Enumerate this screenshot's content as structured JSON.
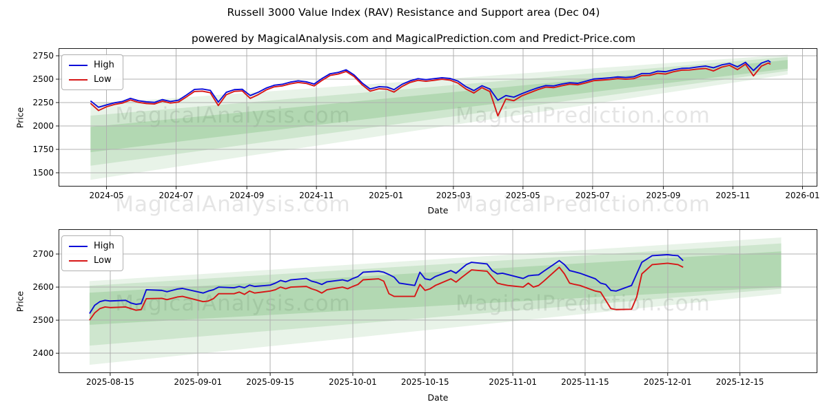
{
  "title": "Russell 3000 Value Index (RAV) Resistance and Support area (Dec 04)",
  "subtitle": "powered by MagicalAnalysis.com and MagicalPrediction.com and Predict-Price.com",
  "watermark": {
    "left_text": "MagicalAnalysis.com",
    "right_text": "MagicalPrediction.com"
  },
  "colors": {
    "high": "#0b0bd8",
    "low": "#d71616",
    "band": "#4da34d",
    "grid": "#b0b0b0",
    "spine": "#1a1a1a"
  },
  "chart_data": [
    {
      "type": "line",
      "ylabel": "Price",
      "xlabel": "Date",
      "ylim": [
        1353,
        2831
      ],
      "xlim": [
        "2024-03-20",
        "2026-01-14"
      ],
      "yticks": [
        2750,
        2500,
        2250,
        2000,
        1750,
        1500
      ],
      "xticks": [
        {
          "date": "2024-05-01",
          "label": "2024-05"
        },
        {
          "date": "2024-07-01",
          "label": "2024-07"
        },
        {
          "date": "2024-09-01",
          "label": "2024-09"
        },
        {
          "date": "2024-11-01",
          "label": "2024-11"
        },
        {
          "date": "2025-01-01",
          "label": "2025-01"
        },
        {
          "date": "2025-03-01",
          "label": "2025-03"
        },
        {
          "date": "2025-05-01",
          "label": "2025-05"
        },
        {
          "date": "2025-07-01",
          "label": "2025-07"
        },
        {
          "date": "2025-09-01",
          "label": "2025-09"
        },
        {
          "date": "2025-11-01",
          "label": "2025-11"
        },
        {
          "date": "2026-01-01",
          "label": "2026-01"
        }
      ],
      "bands": [
        {
          "x0": "2024-04-17",
          "x1": "2025-12-19",
          "top0": 2235,
          "top1": 2762,
          "bot0": 1425,
          "bot1": 2550,
          "alpha": 0.13
        },
        {
          "x0": "2024-04-17",
          "x1": "2025-12-19",
          "top0": 2110,
          "top1": 2738,
          "bot0": 1575,
          "bot1": 2588,
          "alpha": 0.16
        },
        {
          "x0": "2024-04-17",
          "x1": "2025-12-19",
          "top0": 1990,
          "top1": 2705,
          "bot0": 1720,
          "bot1": 2612,
          "alpha": 0.21
        }
      ],
      "series": [
        {
          "name": "High",
          "color_key": "high",
          "dates": [
            "2024-04-17",
            "2024-04-24",
            "2024-05-01",
            "2024-05-08",
            "2024-05-15",
            "2024-05-22",
            "2024-05-29",
            "2024-06-05",
            "2024-06-12",
            "2024-06-19",
            "2024-06-26",
            "2024-07-03",
            "2024-07-10",
            "2024-07-17",
            "2024-07-24",
            "2024-07-31",
            "2024-08-07",
            "2024-08-14",
            "2024-08-21",
            "2024-08-28",
            "2024-09-04",
            "2024-09-11",
            "2024-09-18",
            "2024-09-25",
            "2024-10-02",
            "2024-10-09",
            "2024-10-16",
            "2024-10-23",
            "2024-10-30",
            "2024-11-06",
            "2024-11-13",
            "2024-11-20",
            "2024-11-27",
            "2024-12-04",
            "2024-12-11",
            "2024-12-18",
            "2024-12-26",
            "2025-01-02",
            "2025-01-08",
            "2025-01-15",
            "2025-01-22",
            "2025-01-29",
            "2025-02-05",
            "2025-02-12",
            "2025-02-19",
            "2025-02-26",
            "2025-03-05",
            "2025-03-12",
            "2025-03-19",
            "2025-03-26",
            "2025-04-02",
            "2025-04-09",
            "2025-04-16",
            "2025-04-23",
            "2025-04-30",
            "2025-05-07",
            "2025-05-14",
            "2025-05-21",
            "2025-05-28",
            "2025-06-04",
            "2025-06-11",
            "2025-06-18",
            "2025-06-25",
            "2025-07-02",
            "2025-07-09",
            "2025-07-16",
            "2025-07-23",
            "2025-07-30",
            "2025-08-06",
            "2025-08-13",
            "2025-08-20",
            "2025-08-27",
            "2025-09-03",
            "2025-09-10",
            "2025-09-17",
            "2025-09-24",
            "2025-10-01",
            "2025-10-08",
            "2025-10-15",
            "2025-10-22",
            "2025-10-29",
            "2025-11-05",
            "2025-11-12",
            "2025-11-19",
            "2025-11-26",
            "2025-12-02",
            "2025-12-04"
          ],
          "values": [
            2268,
            2200,
            2225,
            2248,
            2262,
            2295,
            2270,
            2258,
            2252,
            2282,
            2262,
            2275,
            2330,
            2390,
            2395,
            2380,
            2255,
            2360,
            2388,
            2392,
            2325,
            2360,
            2405,
            2435,
            2445,
            2468,
            2482,
            2472,
            2448,
            2508,
            2558,
            2572,
            2600,
            2545,
            2460,
            2395,
            2420,
            2415,
            2388,
            2445,
            2482,
            2505,
            2495,
            2505,
            2515,
            2508,
            2480,
            2420,
            2378,
            2430,
            2395,
            2275,
            2325,
            2308,
            2345,
            2378,
            2408,
            2432,
            2428,
            2448,
            2462,
            2456,
            2478,
            2502,
            2508,
            2514,
            2524,
            2518,
            2525,
            2560,
            2560,
            2585,
            2580,
            2600,
            2615,
            2618,
            2630,
            2640,
            2622,
            2652,
            2668,
            2632,
            2680,
            2592,
            2672,
            2698,
            2680
          ]
        },
        {
          "name": "Low",
          "color_key": "low",
          "dates": [
            "2024-04-17",
            "2024-04-24",
            "2024-05-01",
            "2024-05-08",
            "2024-05-15",
            "2024-05-22",
            "2024-05-29",
            "2024-06-05",
            "2024-06-12",
            "2024-06-19",
            "2024-06-26",
            "2024-07-03",
            "2024-07-10",
            "2024-07-17",
            "2024-07-24",
            "2024-07-31",
            "2024-08-07",
            "2024-08-14",
            "2024-08-21",
            "2024-08-28",
            "2024-09-04",
            "2024-09-11",
            "2024-09-18",
            "2024-09-25",
            "2024-10-02",
            "2024-10-09",
            "2024-10-16",
            "2024-10-23",
            "2024-10-30",
            "2024-11-06",
            "2024-11-13",
            "2024-11-20",
            "2024-11-27",
            "2024-12-04",
            "2024-12-11",
            "2024-12-18",
            "2024-12-26",
            "2025-01-02",
            "2025-01-08",
            "2025-01-15",
            "2025-01-22",
            "2025-01-29",
            "2025-02-05",
            "2025-02-12",
            "2025-02-19",
            "2025-02-26",
            "2025-03-05",
            "2025-03-12",
            "2025-03-19",
            "2025-03-26",
            "2025-04-02",
            "2025-04-09",
            "2025-04-16",
            "2025-04-23",
            "2025-04-30",
            "2025-05-07",
            "2025-05-14",
            "2025-05-21",
            "2025-05-28",
            "2025-06-04",
            "2025-06-11",
            "2025-06-18",
            "2025-06-25",
            "2025-07-02",
            "2025-07-09",
            "2025-07-16",
            "2025-07-23",
            "2025-07-30",
            "2025-08-06",
            "2025-08-13",
            "2025-08-20",
            "2025-08-27",
            "2025-09-03",
            "2025-09-10",
            "2025-09-17",
            "2025-09-24",
            "2025-10-01",
            "2025-10-08",
            "2025-10-15",
            "2025-10-22",
            "2025-10-29",
            "2025-11-05",
            "2025-11-12",
            "2025-11-19",
            "2025-11-26",
            "2025-12-02",
            "2025-12-04"
          ],
          "values": [
            2242,
            2165,
            2205,
            2230,
            2245,
            2278,
            2252,
            2240,
            2235,
            2265,
            2245,
            2255,
            2310,
            2368,
            2372,
            2355,
            2218,
            2335,
            2370,
            2375,
            2295,
            2335,
            2385,
            2418,
            2428,
            2450,
            2465,
            2455,
            2428,
            2488,
            2540,
            2555,
            2582,
            2528,
            2440,
            2372,
            2398,
            2392,
            2362,
            2422,
            2465,
            2488,
            2478,
            2488,
            2500,
            2490,
            2458,
            2395,
            2352,
            2410,
            2368,
            2108,
            2288,
            2270,
            2322,
            2355,
            2388,
            2415,
            2410,
            2430,
            2446,
            2440,
            2460,
            2484,
            2490,
            2496,
            2506,
            2500,
            2505,
            2538,
            2540,
            2562,
            2555,
            2580,
            2596,
            2598,
            2608,
            2615,
            2588,
            2628,
            2648,
            2602,
            2660,
            2535,
            2640,
            2672,
            2660
          ]
        }
      ]
    },
    {
      "type": "line",
      "ylabel": "Price",
      "xlabel": "Date",
      "ylim": [
        2340,
        2775
      ],
      "xlim": [
        "2025-08-05",
        "2025-12-30"
      ],
      "yticks": [
        2700,
        2600,
        2500,
        2400
      ],
      "xticks": [
        {
          "date": "2025-08-15",
          "label": "2025-08-15"
        },
        {
          "date": "2025-09-01",
          "label": "2025-09-01"
        },
        {
          "date": "2025-09-15",
          "label": "2025-09-15"
        },
        {
          "date": "2025-10-01",
          "label": "2025-10-01"
        },
        {
          "date": "2025-10-15",
          "label": "2025-10-15"
        },
        {
          "date": "2025-11-01",
          "label": "2025-11-01"
        },
        {
          "date": "2025-11-15",
          "label": "2025-11-15"
        },
        {
          "date": "2025-12-01",
          "label": "2025-12-01"
        },
        {
          "date": "2025-12-15",
          "label": "2025-12-15"
        }
      ],
      "bands": [
        {
          "x0": "2025-08-11",
          "x1": "2025-12-23",
          "top0": 2618,
          "top1": 2750,
          "bot0": 2365,
          "bot1": 2580,
          "alpha": 0.13
        },
        {
          "x0": "2025-08-11",
          "x1": "2025-12-23",
          "top0": 2604,
          "top1": 2732,
          "bot0": 2423,
          "bot1": 2595,
          "alpha": 0.16
        },
        {
          "x0": "2025-08-11",
          "x1": "2025-12-23",
          "top0": 2583,
          "top1": 2708,
          "bot0": 2486,
          "bot1": 2600,
          "alpha": 0.21
        }
      ],
      "series": [
        {
          "name": "High",
          "color_key": "high",
          "dates": [
            "2025-08-11",
            "2025-08-12",
            "2025-08-13",
            "2025-08-14",
            "2025-08-15",
            "2025-08-18",
            "2025-08-19",
            "2025-08-20",
            "2025-08-21",
            "2025-08-22",
            "2025-08-25",
            "2025-08-26",
            "2025-08-27",
            "2025-08-28",
            "2025-08-29",
            "2025-09-02",
            "2025-09-03",
            "2025-09-04",
            "2025-09-05",
            "2025-09-08",
            "2025-09-09",
            "2025-09-10",
            "2025-09-11",
            "2025-09-12",
            "2025-09-15",
            "2025-09-16",
            "2025-09-17",
            "2025-09-18",
            "2025-09-19",
            "2025-09-22",
            "2025-09-23",
            "2025-09-24",
            "2025-09-25",
            "2025-09-26",
            "2025-09-29",
            "2025-09-30",
            "2025-10-01",
            "2025-10-02",
            "2025-10-03",
            "2025-10-06",
            "2025-10-07",
            "2025-10-08",
            "2025-10-09",
            "2025-10-10",
            "2025-10-13",
            "2025-10-14",
            "2025-10-15",
            "2025-10-16",
            "2025-10-17",
            "2025-10-20",
            "2025-10-21",
            "2025-10-22",
            "2025-10-23",
            "2025-10-24",
            "2025-10-27",
            "2025-10-28",
            "2025-10-29",
            "2025-10-30",
            "2025-10-31",
            "2025-11-03",
            "2025-11-04",
            "2025-11-05",
            "2025-11-06",
            "2025-11-07",
            "2025-11-10",
            "2025-11-11",
            "2025-11-12",
            "2025-11-13",
            "2025-11-14",
            "2025-11-17",
            "2025-11-18",
            "2025-11-19",
            "2025-11-20",
            "2025-11-21",
            "2025-11-24",
            "2025-11-25",
            "2025-11-26",
            "2025-11-28",
            "2025-12-01",
            "2025-12-02",
            "2025-12-03",
            "2025-12-04"
          ],
          "values": [
            2520,
            2545,
            2556,
            2560,
            2558,
            2560,
            2552,
            2548,
            2550,
            2592,
            2590,
            2586,
            2590,
            2594,
            2596,
            2582,
            2588,
            2592,
            2600,
            2598,
            2602,
            2598,
            2606,
            2602,
            2606,
            2612,
            2620,
            2616,
            2622,
            2626,
            2618,
            2614,
            2608,
            2616,
            2622,
            2618,
            2626,
            2632,
            2645,
            2648,
            2645,
            2638,
            2630,
            2612,
            2605,
            2645,
            2625,
            2622,
            2632,
            2650,
            2642,
            2655,
            2668,
            2675,
            2670,
            2650,
            2640,
            2642,
            2638,
            2626,
            2634,
            2636,
            2637,
            2648,
            2680,
            2668,
            2650,
            2646,
            2642,
            2625,
            2612,
            2608,
            2590,
            2588,
            2605,
            2640,
            2675,
            2695,
            2698,
            2696,
            2695,
            2680
          ]
        },
        {
          "name": "Low",
          "color_key": "low",
          "dates": [
            "2025-08-11",
            "2025-08-12",
            "2025-08-13",
            "2025-08-14",
            "2025-08-15",
            "2025-08-18",
            "2025-08-19",
            "2025-08-20",
            "2025-08-21",
            "2025-08-22",
            "2025-08-25",
            "2025-08-26",
            "2025-08-27",
            "2025-08-28",
            "2025-08-29",
            "2025-09-02",
            "2025-09-03",
            "2025-09-04",
            "2025-09-05",
            "2025-09-08",
            "2025-09-09",
            "2025-09-10",
            "2025-09-11",
            "2025-09-12",
            "2025-09-15",
            "2025-09-16",
            "2025-09-17",
            "2025-09-18",
            "2025-09-19",
            "2025-09-22",
            "2025-09-23",
            "2025-09-24",
            "2025-09-25",
            "2025-09-26",
            "2025-09-29",
            "2025-09-30",
            "2025-10-01",
            "2025-10-02",
            "2025-10-03",
            "2025-10-06",
            "2025-10-07",
            "2025-10-08",
            "2025-10-09",
            "2025-10-10",
            "2025-10-13",
            "2025-10-14",
            "2025-10-15",
            "2025-10-16",
            "2025-10-17",
            "2025-10-20",
            "2025-10-21",
            "2025-10-22",
            "2025-10-23",
            "2025-10-24",
            "2025-10-27",
            "2025-10-28",
            "2025-10-29",
            "2025-10-30",
            "2025-10-31",
            "2025-11-03",
            "2025-11-04",
            "2025-11-05",
            "2025-11-06",
            "2025-11-07",
            "2025-11-10",
            "2025-11-11",
            "2025-11-12",
            "2025-11-13",
            "2025-11-14",
            "2025-11-17",
            "2025-11-18",
            "2025-11-19",
            "2025-11-20",
            "2025-11-21",
            "2025-11-24",
            "2025-11-25",
            "2025-11-26",
            "2025-11-28",
            "2025-12-01",
            "2025-12-02",
            "2025-12-03",
            "2025-12-04"
          ],
          "values": [
            2500,
            2522,
            2535,
            2540,
            2538,
            2540,
            2535,
            2530,
            2532,
            2565,
            2566,
            2562,
            2566,
            2570,
            2572,
            2556,
            2558,
            2565,
            2580,
            2580,
            2585,
            2578,
            2588,
            2582,
            2588,
            2592,
            2600,
            2595,
            2600,
            2602,
            2595,
            2590,
            2582,
            2592,
            2600,
            2595,
            2602,
            2608,
            2622,
            2625,
            2618,
            2580,
            2572,
            2572,
            2572,
            2608,
            2590,
            2595,
            2605,
            2625,
            2615,
            2628,
            2640,
            2652,
            2648,
            2630,
            2612,
            2608,
            2605,
            2600,
            2612,
            2600,
            2605,
            2618,
            2660,
            2640,
            2612,
            2608,
            2605,
            2588,
            2585,
            2560,
            2535,
            2532,
            2533,
            2570,
            2640,
            2668,
            2672,
            2670,
            2668,
            2660
          ]
        }
      ]
    }
  ]
}
